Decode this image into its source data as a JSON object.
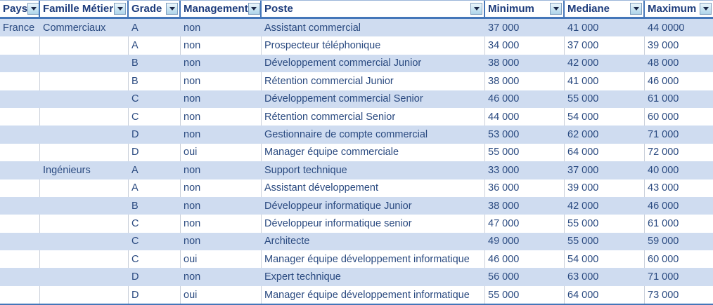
{
  "app": {
    "kind": "spreadsheet-filtered-table"
  },
  "colors": {
    "header_text": "#1d3c7c",
    "body_text": "#2a4a80",
    "banded_row": "#cfdcf0",
    "header_border": "#4476b9",
    "filter_button_border": "#7f9fbf",
    "filter_button_fill": "#bcdcec",
    "gridline": "#c9cfda"
  },
  "icons": {
    "filter_dropdown": "filter-dropdown-triangle"
  },
  "table": {
    "columns": [
      {
        "key": "pays",
        "label": "Pays"
      },
      {
        "key": "famille-metier",
        "label": "Famille Métier"
      },
      {
        "key": "grade",
        "label": "Grade"
      },
      {
        "key": "management",
        "label": "Management"
      },
      {
        "key": "poste",
        "label": "Poste"
      },
      {
        "key": "minimum",
        "label": "Minimum"
      },
      {
        "key": "mediane",
        "label": "Mediane"
      },
      {
        "key": "maximum",
        "label": "Maximum"
      }
    ],
    "rows": [
      [
        "France",
        "Commerciaux",
        "A",
        "non",
        "Assistant commercial",
        "37 000",
        "41 000",
        "44 0000"
      ],
      [
        "",
        "",
        "A",
        "non",
        "Prospecteur téléphonique",
        "34 000",
        "37 000",
        "39 000"
      ],
      [
        "",
        "",
        "B",
        "non",
        "Développement commercial Junior",
        "38 000",
        "42 000",
        "48 000"
      ],
      [
        "",
        "",
        "B",
        "non",
        "Rétention commercial Junior",
        "38 000",
        "41 000",
        "46 000"
      ],
      [
        "",
        "",
        "C",
        "non",
        "Développement commercial Senior",
        "46 000",
        "55 000",
        "61 000"
      ],
      [
        "",
        "",
        "C",
        "non",
        "Rétention commercial Senior",
        "44 000",
        "54 000",
        "60 000"
      ],
      [
        "",
        "",
        "D",
        "non",
        "Gestionnaire de compte commercial",
        "53 000",
        "62 000",
        "71 000"
      ],
      [
        "",
        "",
        "D",
        "oui",
        "Manager équipe commerciale",
        "55 000",
        "64 000",
        "72 000"
      ],
      [
        "",
        "Ingénieurs",
        "A",
        "non",
        "Support technique",
        "33 000",
        "37 000",
        "40 000"
      ],
      [
        "",
        "",
        "A",
        "non",
        "Assistant développement",
        "36 000",
        "39 000",
        "43 000"
      ],
      [
        "",
        "",
        "B",
        "non",
        "Développeur informatique Junior",
        "38 000",
        "42 000",
        "46 000"
      ],
      [
        "",
        "",
        "C",
        "non",
        "Développeur informatique senior",
        "47 000",
        "55 000",
        "61 000"
      ],
      [
        "",
        "",
        "C",
        "non",
        "Architecte",
        "49 000",
        "55 000",
        "59 000"
      ],
      [
        "",
        "",
        "C",
        "oui",
        "Manager équipe développement informatique",
        "46 000",
        "54 000",
        "60 000"
      ],
      [
        "",
        "",
        "D",
        "non",
        "Expert technique",
        "56 000",
        "63 000",
        "71 000"
      ],
      [
        "",
        "",
        "D",
        "oui",
        "Manager équipe développement informatique",
        "55 000",
        "64 000",
        "73 000"
      ]
    ],
    "banded_row_indices": [
      0,
      2,
      4,
      6,
      8,
      10,
      12,
      14
    ]
  }
}
